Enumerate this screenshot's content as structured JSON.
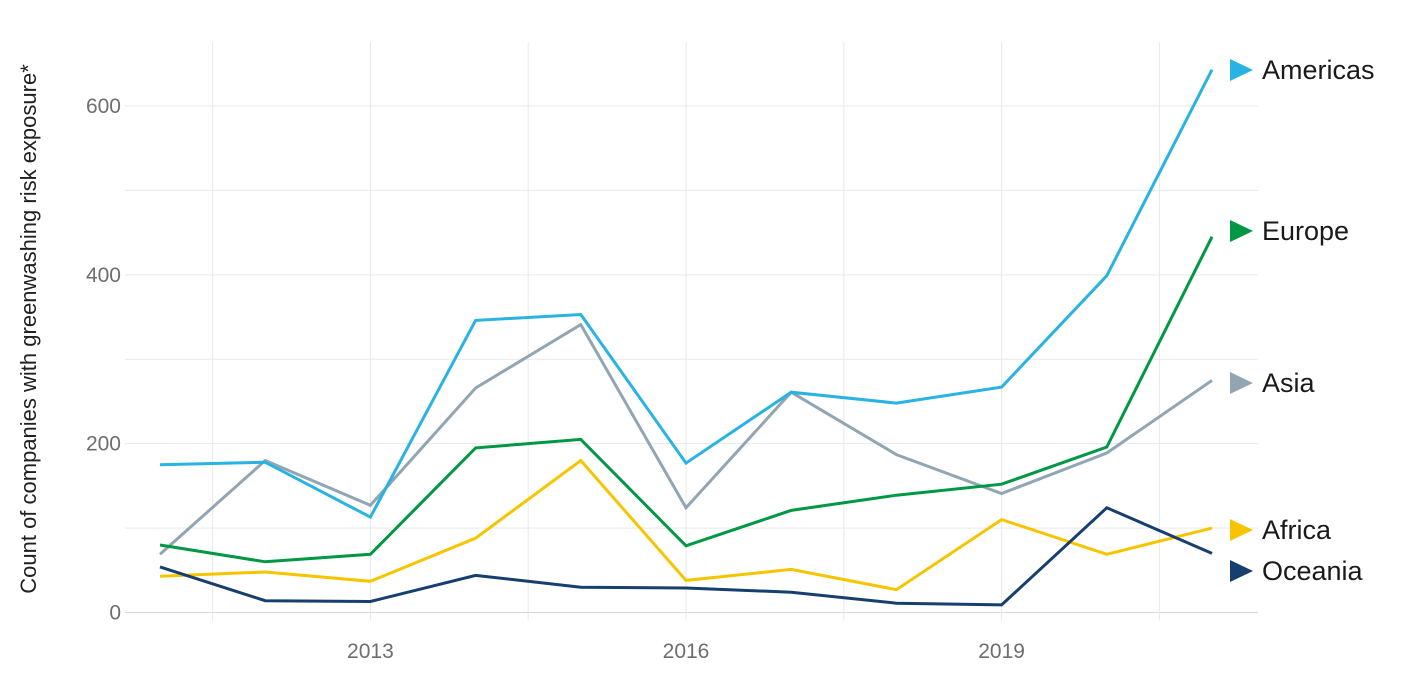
{
  "chart_data": {
    "type": "line",
    "title": "",
    "ylabel": "Count of companies with greenwashing risk exposure*",
    "xlabel": "",
    "x_years": [
      2011,
      2012,
      2013,
      2014,
      2015,
      2016,
      2017,
      2018,
      2019,
      2020,
      2021
    ],
    "x_ticks": [
      {
        "year": 2013,
        "label": "2013"
      },
      {
        "year": 2016,
        "label": "2016"
      },
      {
        "year": 2019,
        "label": "2019"
      }
    ],
    "y_ticks": [
      {
        "value": 0,
        "label": "0"
      },
      {
        "value": 200,
        "label": "200"
      },
      {
        "value": 400,
        "label": "400"
      },
      {
        "value": 600,
        "label": "600"
      }
    ],
    "y_gridlines": [
      0,
      100,
      200,
      300,
      400,
      500,
      600
    ],
    "x_gridlines": [
      2011.5,
      2013,
      2014.5,
      2016,
      2017.5,
      2019,
      2020.5
    ],
    "ylim": [
      0,
      680
    ],
    "grid": true,
    "legend_position": "right",
    "series": [
      {
        "name": "Americas",
        "color": "#29b3e3",
        "values": [
          175,
          178,
          113,
          346,
          353,
          177,
          261,
          248,
          267,
          399,
          643
        ]
      },
      {
        "name": "Europe",
        "color": "#009845",
        "values": [
          80,
          60,
          69,
          195,
          205,
          79,
          121,
          139,
          152,
          196,
          445
        ]
      },
      {
        "name": "Asia",
        "color": "#92a5b3",
        "values": [
          69,
          180,
          127,
          266,
          341,
          124,
          261,
          187,
          141,
          189,
          275
        ]
      },
      {
        "name": "Africa",
        "color": "#f6c500",
        "values": [
          43,
          48,
          37,
          88,
          180,
          38,
          51,
          27,
          110,
          69,
          100
        ]
      },
      {
        "name": "Oceania",
        "color": "#163e6e",
        "values": [
          54,
          14,
          13,
          44,
          30,
          29,
          24,
          11,
          9,
          124,
          70
        ]
      }
    ],
    "colors": {
      "gridline": "#e9e9e9",
      "baseline": "#d9d9d9",
      "tick_text": "#6e6e6e",
      "legend_text": "#1a1a1a",
      "axis_title_text": "#212121"
    }
  }
}
